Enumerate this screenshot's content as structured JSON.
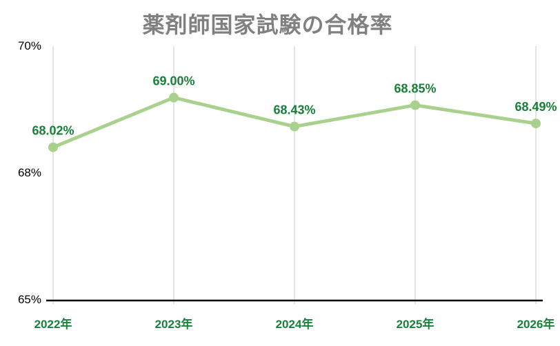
{
  "title": "薬剤師国家試験の合格率",
  "colors": {
    "background": "#ffffff",
    "title": "#808080",
    "series_line": "#a9d18e",
    "data_label": "#188038",
    "x_tick_label": "#188038",
    "y_tick_label": "#000000",
    "gridline": "#c9c9c9",
    "axis_line": "#000000"
  },
  "chart_data": {
    "type": "line",
    "title": "薬剤師国家試験の合格率",
    "categories": [
      "2022年",
      "2023年",
      "2024年",
      "2025年",
      "2026年"
    ],
    "series": [
      {
        "name": "合格率",
        "values": [
          68.02,
          69.0,
          68.43,
          68.85,
          68.49
        ],
        "point_labels": [
          "68.02%",
          "69.00%",
          "68.43%",
          "68.85%",
          "68.49%"
        ]
      }
    ],
    "y_axis": {
      "tick_labels": [
        "70%",
        "68%",
        "65%"
      ],
      "ylim": [
        65,
        70
      ]
    },
    "x_axis": {
      "label": "",
      "tick_labels": [
        "2022年",
        "2023年",
        "2024年",
        "2025年",
        "2026年"
      ]
    },
    "grid": "vertical-only",
    "legend": "none",
    "marker": "circle",
    "data_labels_visible": true
  }
}
